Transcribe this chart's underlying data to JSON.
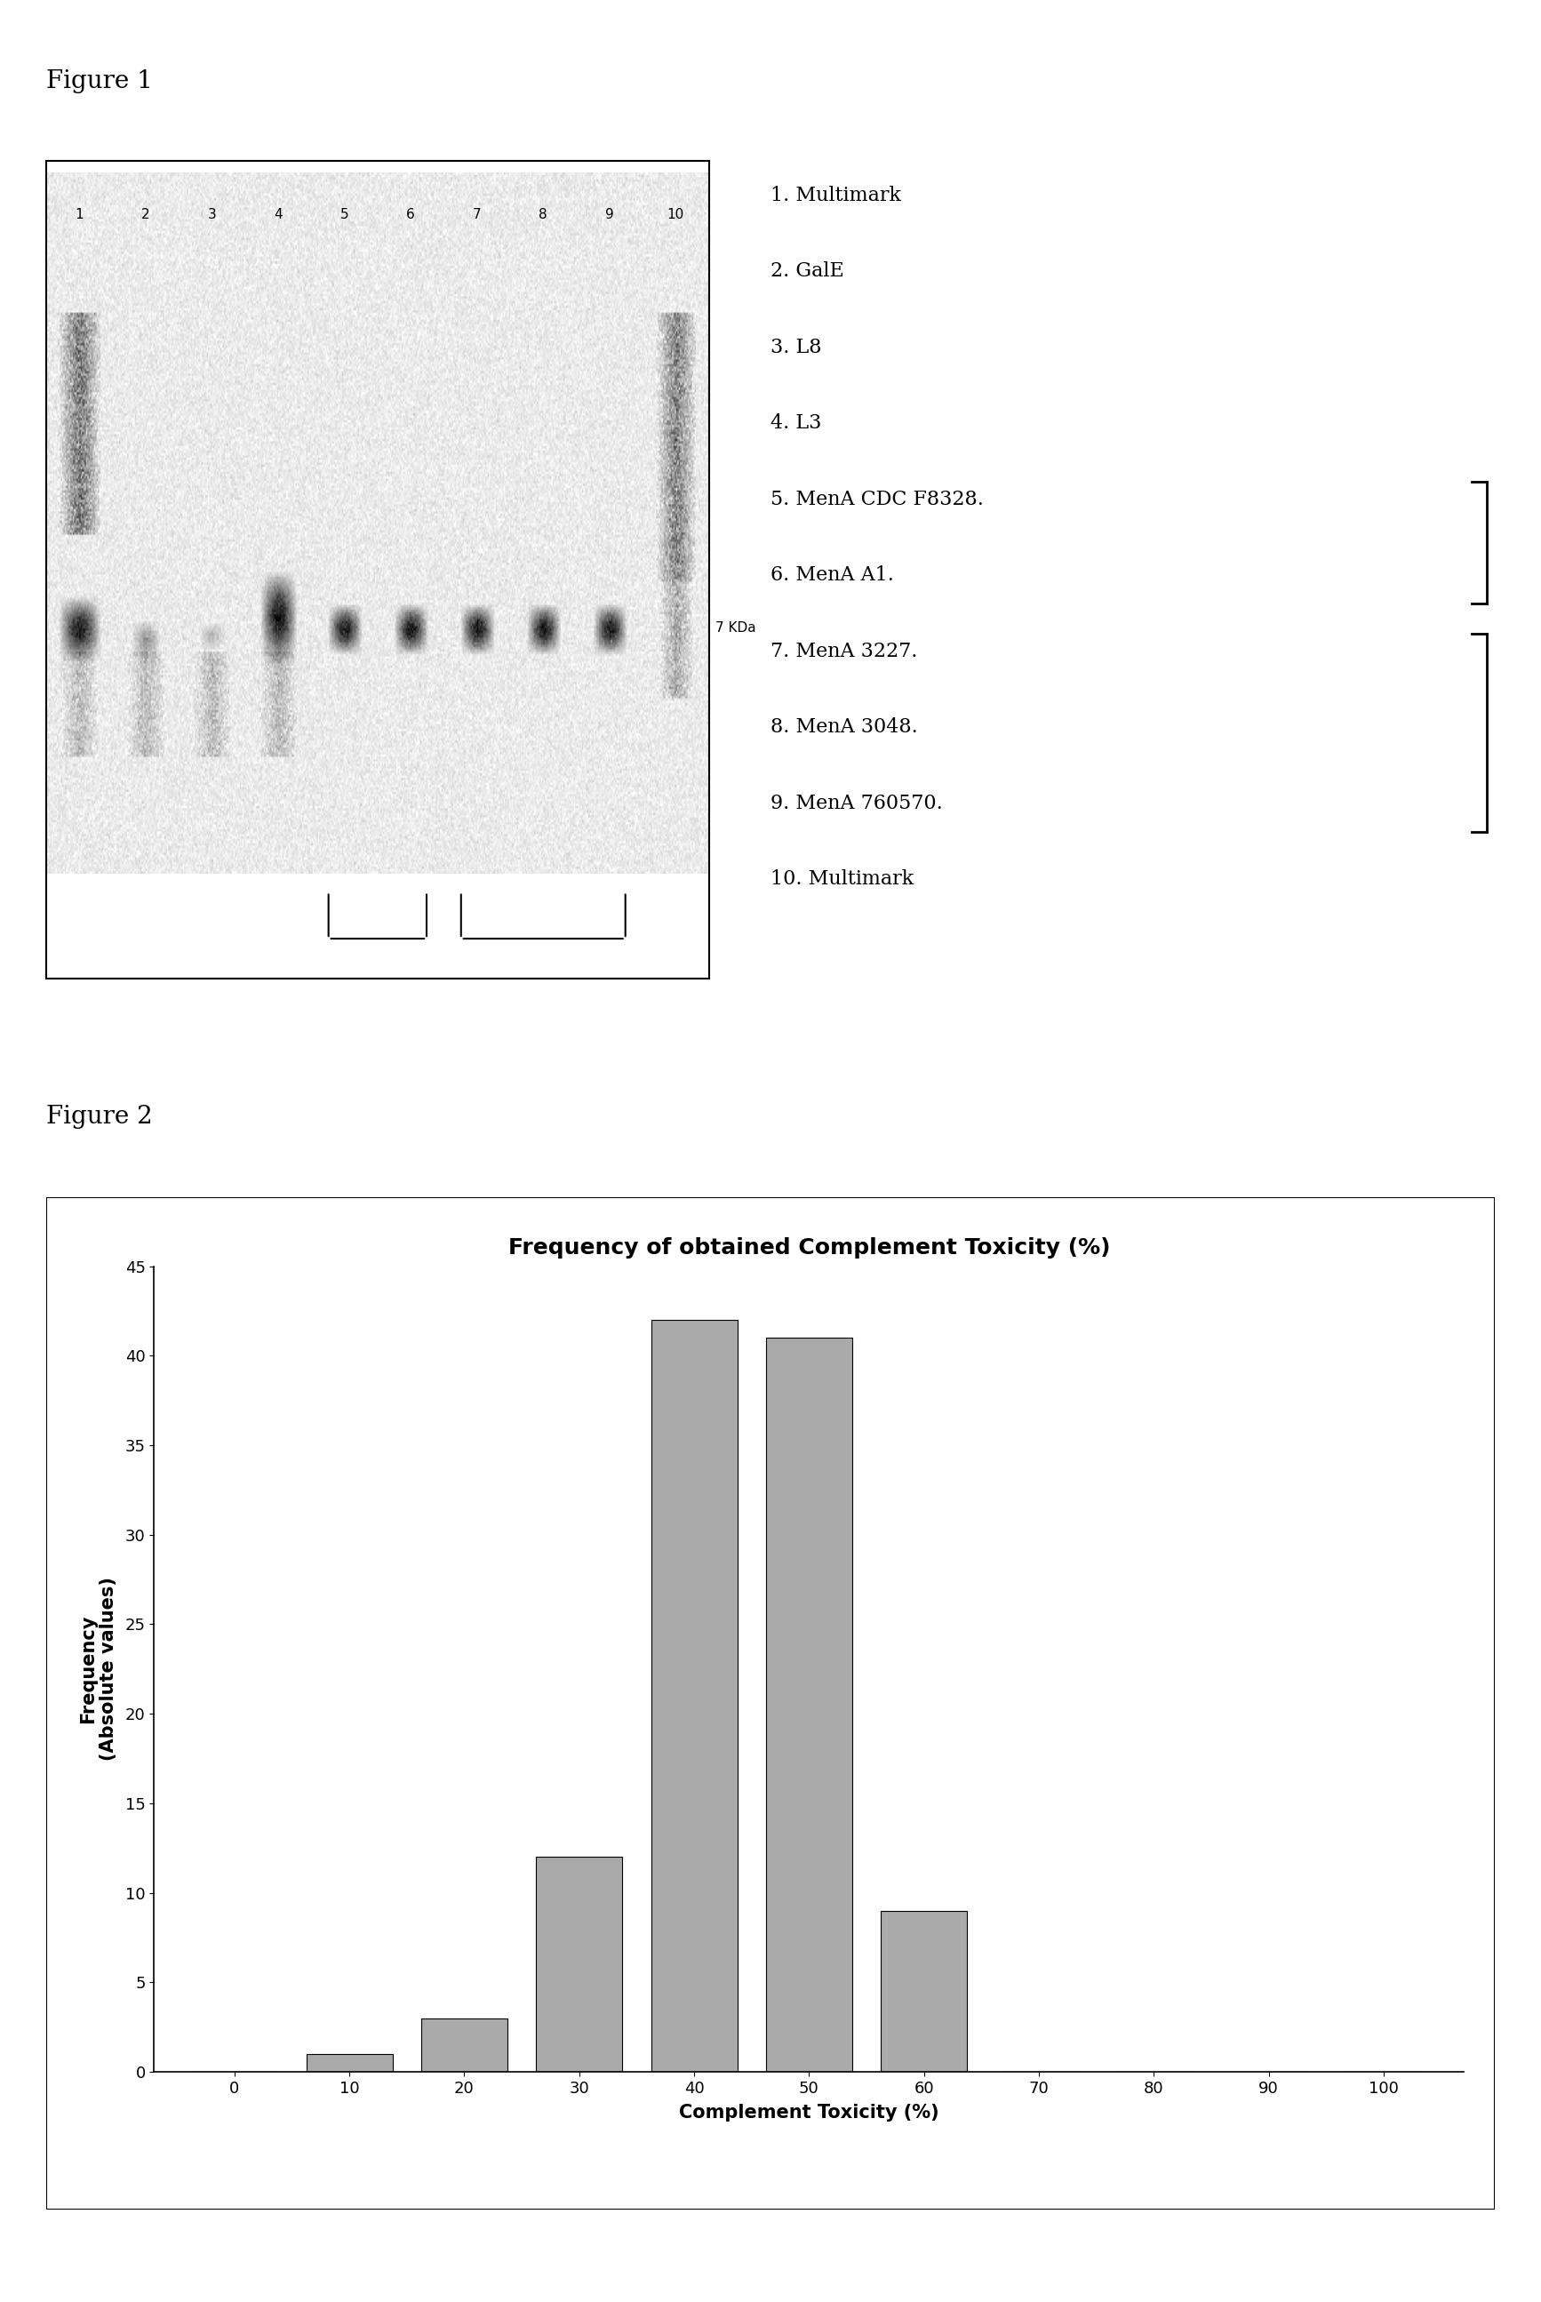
{
  "fig1_label": "Figure 1",
  "fig2_label": "Figure 2",
  "fig1_lane_labels": [
    "1",
    "2",
    "3",
    "4",
    "5",
    "6",
    "7",
    "8",
    "9",
    "10"
  ],
  "fig1_legend": [
    "1. Multimark",
    "2. GalE",
    "3. L8",
    "4. L3",
    "5. MenA CDC F8328.",
    "6. MenA A1.",
    "7. MenA 3227.",
    "8. MenA 3048.",
    "9. MenA 760570.",
    "10. Multimark"
  ],
  "fig1_kda_label": "7 KDa",
  "bar_categories": [
    0,
    10,
    20,
    30,
    40,
    50,
    60,
    70,
    80,
    90,
    100
  ],
  "bar_values": [
    0,
    1,
    3,
    12,
    42,
    41,
    9,
    0,
    0,
    0,
    0
  ],
  "bar_color": "#aaaaaa",
  "chart_title": "Frequency of obtained Complement Toxicity (%)",
  "xlabel": "Complement Toxicity (%)",
  "ylabel_line1": "Frequency",
  "ylabel_line2": "(Absolute values)",
  "ylim": [
    0,
    45
  ],
  "yticks": [
    0,
    5,
    10,
    15,
    20,
    25,
    30,
    35,
    40,
    45
  ],
  "xticks": [
    0,
    10,
    20,
    30,
    40,
    50,
    60,
    70,
    80,
    90,
    100
  ],
  "fig_bg": "#ffffff"
}
